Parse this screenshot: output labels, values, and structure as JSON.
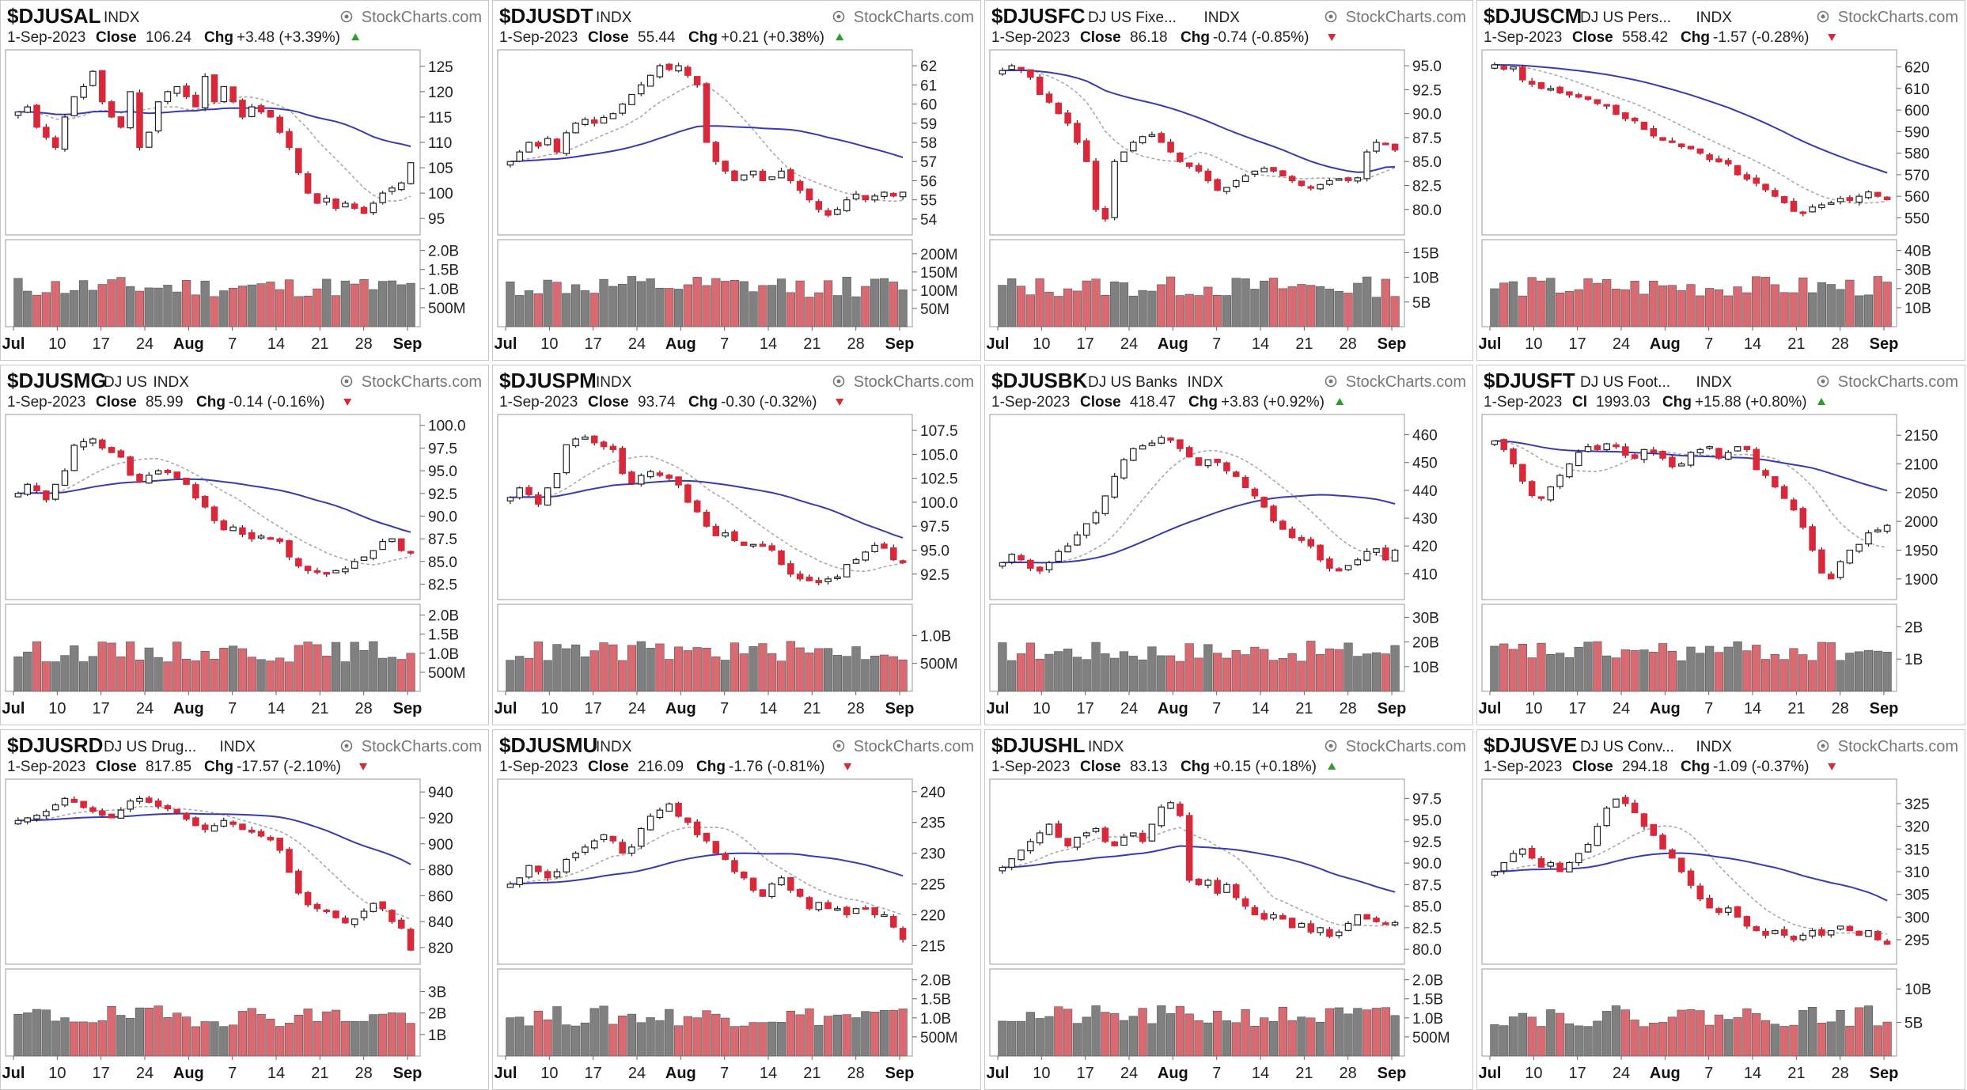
{
  "watermark": "StockCharts.com",
  "colors": {
    "up": "#ffffff",
    "down": "#d9283a",
    "vol_up": "#808080",
    "vol_down": "#d96a72",
    "ma_fast": "#aaaaaa",
    "ma_mid": "#3a3ab0",
    "ma_slow": "#dd3b3b"
  },
  "panels": [
    {
      "symbol": "$DJUSAL",
      "desc": "",
      "exchange": "INDX",
      "date": "1-Sep-2023",
      "close_label": "Close",
      "close": "106.24",
      "chg_label": "Chg",
      "chg": "+3.48 (+3.39%)",
      "dir": "up",
      "xticks": [
        "Jul",
        "10",
        "17",
        "24",
        "Aug",
        "7",
        "14",
        "21",
        "28",
        "Sep"
      ],
      "chart_data": {
        "type": "candlestick",
        "price_ticks": [
          "125",
          "120",
          "115",
          "110",
          "105",
          "100",
          "95"
        ],
        "ylim": [
          93,
          127
        ],
        "volume_ticks": [
          "2.0B",
          "1.5B",
          "1.0B",
          "500M"
        ],
        "vlim": [
          0,
          2.2
        ],
        "closes": [
          116,
          117,
          113,
          111,
          109,
          115,
          119,
          121,
          124,
          118,
          115,
          113,
          120,
          109,
          112,
          118,
          120,
          121,
          119,
          117,
          123,
          118,
          121,
          118,
          115,
          117,
          116,
          115,
          112,
          109,
          104,
          100,
          98,
          99,
          97,
          98,
          97,
          96,
          98,
          100,
          101,
          102,
          106
        ]
      }
    },
    {
      "symbol": "$DJUSDT",
      "desc": "",
      "exchange": "INDX",
      "date": "1-Sep-2023",
      "close_label": "Close",
      "close": "55.44",
      "chg_label": "Chg",
      "chg": "+0.21 (+0.38%)",
      "dir": "up",
      "xticks": [
        "Jul",
        "10",
        "17",
        "24",
        "Aug",
        "7",
        "14",
        "21",
        "28",
        "Sep"
      ],
      "chart_data": {
        "type": "candlestick",
        "price_ticks": [
          "62",
          "61",
          "60",
          "59",
          "58",
          "57",
          "56",
          "55",
          "54"
        ],
        "ylim": [
          53.5,
          62.5
        ],
        "volume_ticks": [
          "200M",
          "150M",
          "100M",
          "50M"
        ],
        "vlim": [
          0,
          230
        ],
        "closes": [
          57.0,
          57.5,
          58.0,
          57.8,
          58.2,
          57.5,
          58.5,
          59.0,
          59.2,
          59.0,
          59.3,
          59.5,
          60.0,
          60.5,
          61.0,
          61.5,
          62.0,
          61.8,
          62.0,
          61.5,
          61.0,
          58.0,
          57.0,
          56.5,
          56.0,
          56.3,
          56.5,
          56.0,
          56.2,
          56.5,
          56.0,
          55.5,
          55.0,
          54.5,
          54.2,
          54.5,
          55.0,
          55.3,
          55.0,
          55.2,
          55.4,
          55.2,
          55.4
        ]
      }
    },
    {
      "symbol": "$DJUSFC",
      "desc": "DJ US Fixe...",
      "exchange": "INDX",
      "date": "1-Sep-2023",
      "close_label": "Close",
      "close": "86.18",
      "chg_label": "Chg",
      "chg": "-0.74 (-0.85%)",
      "dir": "down",
      "xticks": [
        "Jul",
        "10",
        "17",
        "24",
        "Aug",
        "7",
        "14",
        "21",
        "28",
        "Sep"
      ],
      "chart_data": {
        "type": "candlestick",
        "price_ticks": [
          "95.0",
          "92.5",
          "90.0",
          "87.5",
          "85.0",
          "82.5",
          "80.0"
        ],
        "ylim": [
          78,
          96
        ],
        "volume_ticks": [
          "15B",
          "10B",
          "5B"
        ],
        "vlim": [
          0,
          17
        ],
        "closes": [
          94.5,
          95.0,
          94.6,
          93.8,
          92.0,
          91.2,
          90.0,
          89.0,
          87.0,
          85.0,
          80.0,
          79.0,
          85.0,
          86.0,
          87.0,
          87.6,
          87.8,
          87.0,
          86.0,
          85.0,
          84.5,
          84.0,
          83.0,
          82.0,
          82.3,
          83.0,
          83.5,
          84.0,
          84.3,
          84.0,
          83.5,
          83.0,
          82.5,
          82.3,
          82.6,
          83.0,
          83.2,
          83.0,
          83.3,
          86.0,
          87.0,
          86.9,
          86.2
        ]
      }
    },
    {
      "symbol": "$DJUSCM",
      "desc": "DJ US Pers...",
      "exchange": "INDX",
      "date": "1-Sep-2023",
      "close_label": "Close",
      "close": "558.42",
      "chg_label": "Chg",
      "chg": "-1.57 (-0.28%)",
      "dir": "down",
      "xticks": [
        "Jul",
        "10",
        "17",
        "24",
        "Aug",
        "7",
        "14",
        "21",
        "28",
        "Sep"
      ],
      "chart_data": {
        "type": "candlestick",
        "price_ticks": [
          "620",
          "610",
          "600",
          "590",
          "580",
          "570",
          "560",
          "550"
        ],
        "ylim": [
          545,
          625
        ],
        "volume_ticks": [
          "40B",
          "30B",
          "20B",
          "10B"
        ],
        "vlim": [
          0,
          44
        ],
        "closes": [
          621,
          619,
          620,
          614,
          612,
          610,
          610,
          608,
          607,
          606,
          605,
          603,
          602,
          598,
          596,
          595,
          591,
          588,
          586,
          585,
          583,
          582,
          580,
          577,
          576,
          575,
          570,
          568,
          566,
          563,
          560,
          557,
          553,
          552,
          555,
          556,
          557,
          559,
          558,
          560,
          562,
          560,
          558.4
        ]
      }
    },
    {
      "symbol": "$DJUSMG",
      "desc": "DJ US",
      "exchange": "INDX",
      "date": "1-Sep-2023",
      "close_label": "Close",
      "close": "85.99",
      "chg_label": "Chg",
      "chg": "-0.14 (-0.16%)",
      "dir": "down",
      "xticks": [
        "Jul",
        "10",
        "17",
        "24",
        "Aug",
        "7",
        "14",
        "21",
        "28",
        "Sep"
      ],
      "chart_data": {
        "type": "candlestick",
        "price_ticks": [
          "100.0",
          "97.5",
          "95.0",
          "92.5",
          "90.0",
          "87.5",
          "85.0",
          "82.5"
        ],
        "ylim": [
          81.5,
          100.5
        ],
        "volume_ticks": [
          "2.0B",
          "1.5B",
          "1.0B",
          "500M"
        ],
        "vlim": [
          0,
          2.2
        ],
        "closes": [
          92.5,
          93.5,
          92.8,
          91.8,
          93.5,
          95.0,
          97.8,
          98.2,
          98.5,
          97.5,
          97.0,
          96.5,
          94.5,
          93.8,
          94.5,
          95.0,
          94.8,
          94.2,
          93.5,
          92.0,
          91.0,
          89.5,
          88.5,
          88.8,
          88.0,
          87.5,
          87.8,
          87.6,
          87.2,
          85.5,
          84.5,
          84.0,
          83.8,
          83.6,
          84.0,
          84.2,
          85.0,
          85.5,
          86.2,
          87.2,
          87.5,
          86.2,
          86.0
        ]
      }
    },
    {
      "symbol": "$DJUSPM",
      "desc": "",
      "exchange": "INDX",
      "date": "1-Sep-2023",
      "close_label": "Close",
      "close": "93.74",
      "chg_label": "Chg",
      "chg": "-0.30 (-0.32%)",
      "dir": "down",
      "xticks": [
        "Jul",
        "10",
        "17",
        "24",
        "Aug",
        "7",
        "14",
        "21",
        "28",
        "Sep"
      ],
      "chart_data": {
        "type": "candlestick",
        "price_ticks": [
          "107.5",
          "105.0",
          "102.5",
          "100.0",
          "97.5",
          "95.0",
          "92.5"
        ],
        "ylim": [
          90.5,
          108.5
        ],
        "volume_ticks": [
          "1.0B",
          "500M"
        ],
        "vlim": [
          0,
          1.5
        ],
        "closes": [
          100.5,
          101.5,
          100.8,
          99.8,
          101.5,
          103.0,
          106.0,
          106.6,
          106.8,
          106.2,
          105.8,
          105.5,
          103.0,
          102.0,
          102.8,
          103.2,
          102.8,
          102.5,
          101.8,
          100.0,
          99.0,
          97.5,
          96.5,
          96.8,
          96.0,
          95.5,
          95.6,
          95.4,
          95.0,
          93.5,
          92.5,
          92.0,
          91.8,
          91.6,
          92.0,
          92.2,
          93.5,
          94.0,
          94.8,
          95.5,
          95.2,
          94.0,
          93.7
        ]
      }
    },
    {
      "symbol": "$DJUSBK",
      "desc": "DJ US Banks",
      "exchange": "INDX",
      "date": "1-Sep-2023",
      "close_label": "Close",
      "close": "418.47",
      "chg_label": "Chg",
      "chg": "+3.83 (+0.92%)",
      "dir": "up",
      "xticks": [
        "Jul",
        "10",
        "17",
        "24",
        "Aug",
        "7",
        "14",
        "21",
        "28",
        "Sep"
      ],
      "chart_data": {
        "type": "candlestick",
        "price_ticks": [
          "460",
          "450",
          "440",
          "430",
          "420",
          "410"
        ],
        "ylim": [
          403,
          465
        ],
        "volume_ticks": [
          "30B",
          "20B",
          "10B"
        ],
        "vlim": [
          0,
          34
        ],
        "closes": [
          414,
          417,
          415,
          412,
          411,
          414,
          418,
          420,
          424,
          428,
          432,
          438,
          445,
          451,
          455,
          456,
          457,
          459,
          458,
          455,
          452,
          449,
          451,
          450,
          447,
          445,
          441,
          438,
          434,
          429,
          426,
          423,
          422,
          420,
          415,
          412,
          411,
          413,
          415,
          418,
          419,
          415,
          418.5
        ]
      }
    },
    {
      "symbol": "$DJUSFT",
      "desc": "DJ US Foot...",
      "exchange": "INDX",
      "date": "1-Sep-2023",
      "close_label": "Cl",
      "close": "1993.03",
      "chg_label": "Chg",
      "chg": "+15.88 (+0.80%)",
      "dir": "up",
      "xticks": [
        "Jul",
        "10",
        "17",
        "24",
        "Aug",
        "7",
        "14",
        "21",
        "28",
        "Sep"
      ],
      "chart_data": {
        "type": "candlestick",
        "price_ticks": [
          "2150",
          "2100",
          "2050",
          "2000",
          "1950",
          "1900"
        ],
        "ylim": [
          1875,
          2175
        ],
        "volume_ticks": [
          "2B",
          "1B"
        ],
        "vlim": [
          0,
          2.6
        ],
        "closes": [
          2140,
          2125,
          2100,
          2070,
          2045,
          2040,
          2060,
          2080,
          2100,
          2120,
          2130,
          2125,
          2135,
          2130,
          2115,
          2110,
          2125,
          2120,
          2110,
          2095,
          2100,
          2120,
          2125,
          2130,
          2110,
          2120,
          2130,
          2125,
          2090,
          2080,
          2060,
          2040,
          2020,
          1990,
          1950,
          1910,
          1900,
          1930,
          1950,
          1960,
          1980,
          1985,
          1993
        ]
      }
    },
    {
      "symbol": "$DJUSRD",
      "desc": "DJ US Drug...",
      "exchange": "INDX",
      "date": "1-Sep-2023",
      "close_label": "Close",
      "close": "817.85",
      "chg_label": "Chg",
      "chg": "-17.57 (-2.10%)",
      "dir": "down",
      "xticks": [
        "Jul",
        "10",
        "17",
        "24",
        "Aug",
        "7",
        "14",
        "21",
        "28",
        "Sep"
      ],
      "chart_data": {
        "type": "candlestick",
        "price_ticks": [
          "940",
          "920",
          "900",
          "880",
          "860",
          "840",
          "820"
        ],
        "ylim": [
          812,
          945
        ],
        "volume_ticks": [
          "3B",
          "2B",
          "1B"
        ],
        "vlim": [
          0,
          3.9
        ],
        "closes": [
          918,
          920,
          922,
          925,
          930,
          935,
          932,
          928,
          925,
          922,
          920,
          926,
          933,
          935,
          932,
          929,
          927,
          924,
          919,
          914,
          911,
          914,
          918,
          915,
          911,
          909,
          906,
          903,
          895,
          878,
          862,
          853,
          850,
          848,
          843,
          839,
          842,
          848,
          854,
          850,
          840,
          835,
          818
        ]
      }
    },
    {
      "symbol": "$DJUSMU",
      "desc": "",
      "exchange": "INDX",
      "date": "1-Sep-2023",
      "close_label": "Close",
      "close": "216.09",
      "chg_label": "Chg",
      "chg": "-1.76 (-0.81%)",
      "dir": "down",
      "xticks": [
        "Jul",
        "10",
        "17",
        "24",
        "Aug",
        "7",
        "14",
        "21",
        "28",
        "Sep"
      ],
      "chart_data": {
        "type": "candlestick",
        "price_ticks": [
          "240",
          "235",
          "230",
          "225",
          "220",
          "215"
        ],
        "ylim": [
          213,
          241
        ],
        "volume_ticks": [
          "2.0B",
          "1.5B",
          "1.0B",
          "500M"
        ],
        "vlim": [
          0,
          2.2
        ],
        "closes": [
          225,
          226,
          228,
          227,
          226,
          227,
          229,
          230,
          231,
          232,
          233,
          232,
          230,
          231,
          234,
          236,
          237,
          238,
          236,
          235,
          233,
          232,
          230,
          229,
          227,
          226,
          224,
          223,
          225,
          226,
          224,
          223,
          221,
          222,
          221,
          221,
          220,
          221,
          221,
          220,
          220,
          218,
          216
        ]
      }
    },
    {
      "symbol": "$DJUSHL",
      "desc": "",
      "exchange": "INDX",
      "date": "1-Sep-2023",
      "close_label": "Close",
      "close": "83.13",
      "chg_label": "Chg",
      "chg": "+0.15 (+0.18%)",
      "dir": "up",
      "xticks": [
        "Jul",
        "10",
        "17",
        "24",
        "Aug",
        "7",
        "14",
        "21",
        "28",
        "Sep"
      ],
      "chart_data": {
        "type": "candlestick",
        "price_ticks": [
          "97.5",
          "95.0",
          "92.5",
          "90.0",
          "87.5",
          "85.0",
          "82.5",
          "80.0"
        ],
        "ylim": [
          79,
          99
        ],
        "volume_ticks": [
          "2.0B",
          "1.5B",
          "1.0B",
          "500M"
        ],
        "vlim": [
          0,
          2.2
        ],
        "closes": [
          89.5,
          90.5,
          91.5,
          92.5,
          93.5,
          94.5,
          93.0,
          92.0,
          93.0,
          93.5,
          94.0,
          92.5,
          92.0,
          93.0,
          93.5,
          92.5,
          94.5,
          96.5,
          97.0,
          95.5,
          88.0,
          87.5,
          88.0,
          86.5,
          87.5,
          86.0,
          85.0,
          84.0,
          83.5,
          84.0,
          83.5,
          82.5,
          83.0,
          82.0,
          82.5,
          81.5,
          82.0,
          83.0,
          84.0,
          83.5,
          83.2,
          83.0,
          83.1
        ]
      }
    },
    {
      "symbol": "$DJUSVE",
      "desc": "DJ US Conv...",
      "exchange": "INDX",
      "date": "1-Sep-2023",
      "close_label": "Close",
      "close": "294.18",
      "chg_label": "Chg",
      "chg": "-1.09 (-0.37%)",
      "dir": "down",
      "xticks": [
        "Jul",
        "10",
        "17",
        "24",
        "Aug",
        "7",
        "14",
        "21",
        "28",
        "Sep"
      ],
      "chart_data": {
        "type": "candlestick",
        "price_ticks": [
          "325",
          "320",
          "315",
          "310",
          "305",
          "300",
          "295"
        ],
        "ylim": [
          291,
          329
        ],
        "volume_ticks": [
          "10B",
          "5B"
        ],
        "vlim": [
          0,
          12.5
        ],
        "closes": [
          310,
          312,
          314,
          315,
          313,
          311,
          312,
          310,
          312,
          314,
          316,
          320,
          324,
          326,
          325,
          323,
          320,
          318,
          315,
          313,
          310,
          307,
          304,
          302,
          301,
          302,
          300,
          298,
          297,
          296,
          297,
          296,
          295,
          296,
          297,
          296,
          297,
          298,
          297,
          296,
          297,
          295,
          294
        ]
      }
    }
  ]
}
